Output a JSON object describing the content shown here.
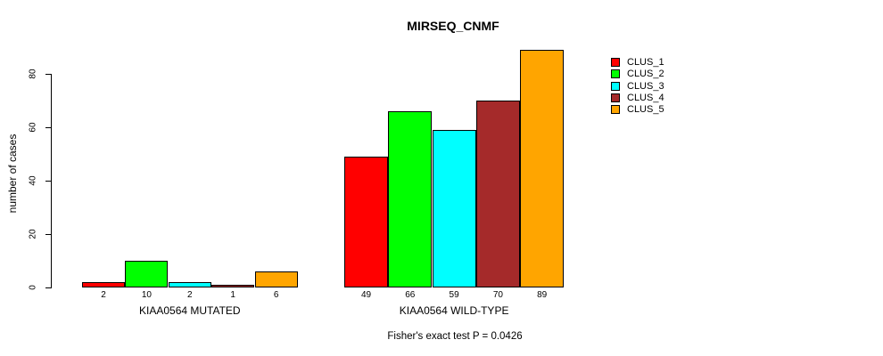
{
  "title": "MIRSEQ_CNMF",
  "caption": "Fisher's exact test P = 0.0426",
  "chart_data": {
    "type": "bar",
    "title": "MIRSEQ_CNMF",
    "xlabel": "",
    "ylabel": "number of cases",
    "ylim": [
      0,
      89
    ],
    "yticks": [
      0,
      20,
      40,
      60,
      80
    ],
    "grid": false,
    "legend_position": "top-right",
    "bar_value_labels_shown": true,
    "series": [
      {
        "name": "CLUS_1",
        "color": "#FF0000"
      },
      {
        "name": "CLUS_2",
        "color": "#00FF00"
      },
      {
        "name": "CLUS_3",
        "color": "#00FFFF"
      },
      {
        "name": "CLUS_4",
        "color": "#A52A2A"
      },
      {
        "name": "CLUS_5",
        "color": "#FFA500"
      }
    ],
    "groups": [
      {
        "label": "KIAA0564 MUTATED",
        "values": [
          2,
          10,
          2,
          1,
          6
        ]
      },
      {
        "label": "KIAA0564 WILD-TYPE",
        "values": [
          49,
          66,
          59,
          70,
          89
        ]
      }
    ],
    "annotation": "Fisher's exact test P = 0.0426",
    "bar_border_color": "#000000",
    "background_color": "#FFFFFF",
    "text_color": "#000000"
  }
}
